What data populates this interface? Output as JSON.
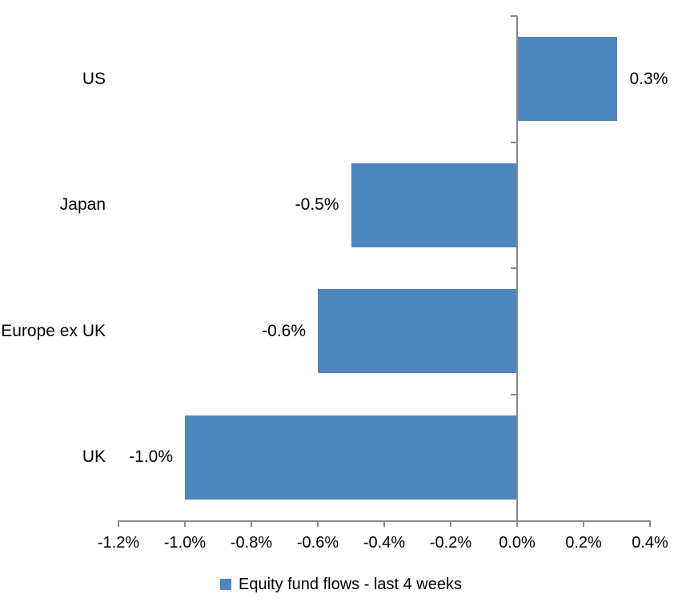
{
  "chart_data": {
    "type": "bar",
    "orientation": "horizontal",
    "title": "",
    "categories": [
      "US",
      "Japan",
      "Europe ex UK",
      "UK"
    ],
    "series": [
      {
        "name": "Equity fund flows - last 4 weeks",
        "values": [
          0.3,
          -0.5,
          -0.6,
          -1.0
        ]
      }
    ],
    "data_labels": [
      "0.3%",
      "-0.5%",
      "-0.6%",
      "-1.0%"
    ],
    "x_axis": {
      "min": -1.2,
      "max": 0.4,
      "step": 0.2,
      "unit": "%",
      "tick_labels": [
        "-1.2%",
        "-1.0%",
        "-0.8%",
        "-0.6%",
        "-0.4%",
        "-0.2%",
        "0.0%",
        "0.2%",
        "0.4%"
      ]
    },
    "legend": {
      "position": "bottom",
      "entries": [
        "Equity fund flows - last 4 weeks"
      ]
    },
    "grid": false,
    "colors": {
      "bar": "#4E87BE",
      "axis": "#8A8A8A",
      "text": "#000000"
    }
  }
}
